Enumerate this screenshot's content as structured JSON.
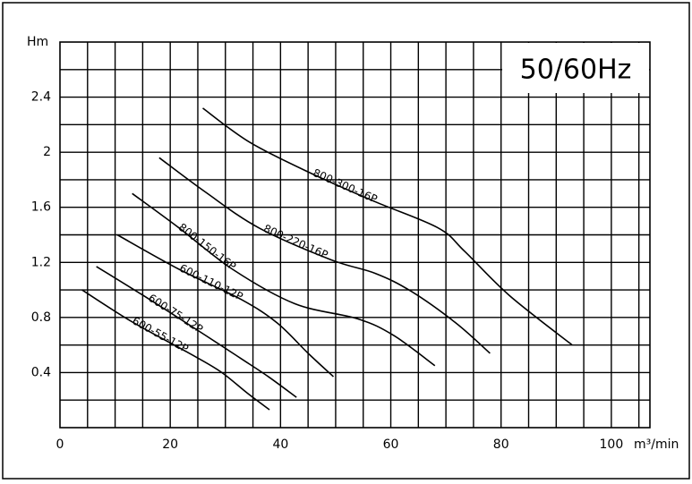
{
  "chart_data": {
    "type": "line",
    "annotation": "50/60Hz",
    "y_label": "Hm",
    "x_label": "m³/min",
    "xlim": [
      0,
      107
    ],
    "ylim": [
      0,
      2.8
    ],
    "xticks": [
      0,
      20,
      40,
      60,
      80,
      100
    ],
    "yticks": [
      0.4,
      0.8,
      1.2,
      1.6,
      2.0,
      2.4
    ],
    "grid": true,
    "xgrid_step": 5,
    "ygrid_step": 0.2,
    "series": [
      {
        "name": "600-55-12P",
        "color": "#000000",
        "x": [
          4,
          13,
          23,
          29,
          34,
          38
        ],
        "values": [
          1.0,
          0.77,
          0.55,
          0.41,
          0.25,
          0.13
        ]
      },
      {
        "name": "600-75-12P",
        "color": "#000000",
        "x": [
          6.6,
          15.1,
          26.4,
          32.9,
          37.8,
          42.9
        ],
        "values": [
          1.17,
          0.96,
          0.67,
          0.5,
          0.37,
          0.22
        ]
      },
      {
        "name": "600-110-12P",
        "color": "#000000",
        "x": [
          10.4,
          21.6,
          32.9,
          39.4,
          45,
          49.6
        ],
        "values": [
          1.4,
          1.15,
          0.93,
          0.76,
          0.54,
          0.37
        ]
      },
      {
        "name": "800-150-16P",
        "color": "#000000",
        "x": [
          13.1,
          21.6,
          31.3,
          42.6,
          54,
          60.5,
          68
        ],
        "values": [
          1.7,
          1.45,
          1.15,
          0.9,
          0.79,
          0.67,
          0.45
        ]
      },
      {
        "name": "800-220-16P",
        "color": "#000000",
        "x": [
          18,
          26.4,
          36.1,
          49.1,
          57.2,
          63.7,
          71.8,
          78
        ],
        "values": [
          1.96,
          1.71,
          1.45,
          1.22,
          1.12,
          0.99,
          0.76,
          0.54
        ]
      },
      {
        "name": "800-300-16P",
        "color": "#000000",
        "x": [
          25.9,
          34.5,
          45.9,
          57.2,
          68.6,
          73.4,
          81.5,
          92.9
        ],
        "values": [
          2.32,
          2.07,
          1.84,
          1.64,
          1.45,
          1.28,
          0.96,
          0.6
        ]
      }
    ]
  }
}
